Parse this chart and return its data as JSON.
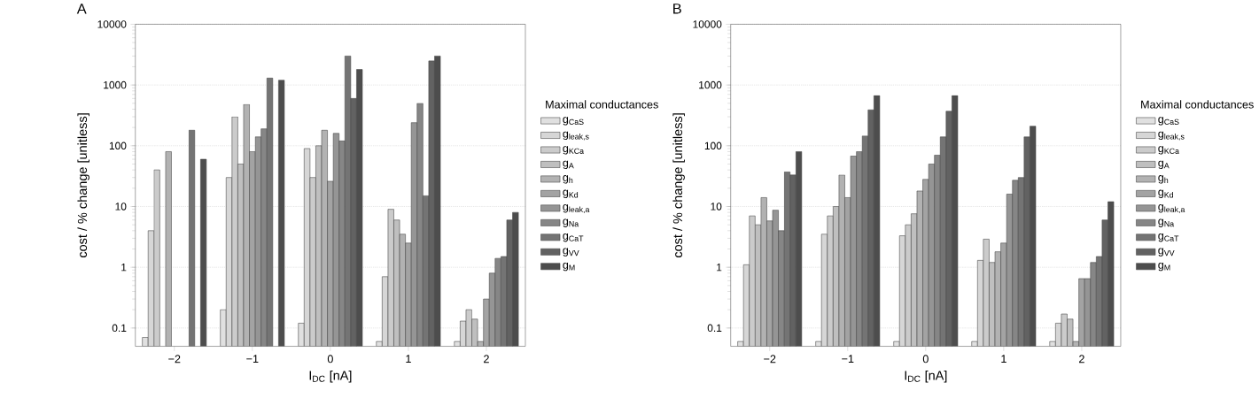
{
  "chart_data": [
    {
      "type": "bar",
      "title": "A",
      "xlabel": "I$_{DC}$ [nA]",
      "ylabel": "cost / % change [unitless]",
      "legend_title": "Maximal conductances",
      "legend": "right",
      "log": "y",
      "grid": "y",
      "categories": [
        "−2",
        "−1",
        "0",
        "1",
        "2"
      ],
      "ylim": [
        0.05,
        10000
      ],
      "yticks": [
        0.1,
        1,
        10,
        100,
        1000,
        10000
      ],
      "series": [
        {
          "name": "g$_{CaS}$",
          "color": "#e0e0e0",
          "values": [
            0.07,
            0.2,
            0.12,
            0.06,
            0.06
          ]
        },
        {
          "name": "g$_{leak,s}$",
          "color": "#d6d6d6",
          "values": [
            4,
            30,
            90,
            0.7,
            0.13
          ]
        },
        {
          "name": "g$_{KCa}$",
          "color": "#cbcbcb",
          "values": [
            40,
            300,
            30,
            9,
            0.2
          ]
        },
        {
          "name": "g$_{A}$",
          "color": "#bfbfbf",
          "values": [
            null,
            50,
            100,
            6,
            0.14
          ]
        },
        {
          "name": "g$_{h}$",
          "color": "#b2b2b2",
          "values": [
            80,
            480,
            180,
            3.5,
            0.06
          ]
        },
        {
          "name": "g$_{Kd}$",
          "color": "#a3a3a3",
          "values": [
            null,
            80,
            26,
            2.5,
            0.3
          ]
        },
        {
          "name": "g$_{leak,a}$",
          "color": "#959595",
          "values": [
            null,
            140,
            160,
            240,
            0.8
          ]
        },
        {
          "name": "g$_{Na}$",
          "color": "#868686",
          "values": [
            null,
            190,
            120,
            500,
            1.4
          ]
        },
        {
          "name": "g$_{CaT}$",
          "color": "#747474",
          "values": [
            180,
            1300,
            3000,
            15,
            1.5
          ]
        },
        {
          "name": "g$_{VV}$",
          "color": "#626262",
          "values": [
            null,
            null,
            600,
            2500,
            6
          ]
        },
        {
          "name": "g$_{M}$",
          "color": "#4d4d4d",
          "values": [
            60,
            1200,
            1800,
            3000,
            8
          ]
        }
      ]
    },
    {
      "type": "bar",
      "title": "B",
      "xlabel": "I$_{DC}$ [nA]",
      "ylabel": "cost / % change [unitless]",
      "legend_title": "Maximal conductances",
      "legend": "right",
      "log": "y",
      "grid": "y",
      "categories": [
        "−2",
        "−1",
        "0",
        "1",
        "2"
      ],
      "ylim": [
        0.05,
        10000
      ],
      "yticks": [
        0.1,
        1,
        10,
        100,
        1000,
        10000
      ],
      "series": [
        {
          "name": "g$_{CaS}$",
          "color": "#e0e0e0",
          "values": [
            0.06,
            0.06,
            0.06,
            0.06,
            0.06
          ]
        },
        {
          "name": "g$_{leak,s}$",
          "color": "#d6d6d6",
          "values": [
            1.1,
            3.5,
            3.3,
            1.3,
            0.12
          ]
        },
        {
          "name": "g$_{KCa}$",
          "color": "#cbcbcb",
          "values": [
            7,
            7,
            5,
            2.9,
            0.17
          ]
        },
        {
          "name": "g$_{A}$",
          "color": "#bfbfbf",
          "values": [
            5,
            10,
            7.6,
            1.2,
            0.14
          ]
        },
        {
          "name": "g$_{h}$",
          "color": "#b2b2b2",
          "values": [
            14,
            33,
            18,
            1.8,
            0.06
          ]
        },
        {
          "name": "g$_{Kd}$",
          "color": "#a3a3a3",
          "values": [
            5.8,
            14,
            28,
            2.5,
            0.65
          ]
        },
        {
          "name": "g$_{leak,a}$",
          "color": "#959595",
          "values": [
            8.7,
            68,
            50,
            16,
            0.65
          ]
        },
        {
          "name": "g$_{Na}$",
          "color": "#868686",
          "values": [
            4,
            80,
            70,
            27,
            1.2
          ]
        },
        {
          "name": "g$_{CaT}$",
          "color": "#747474",
          "values": [
            37,
            145,
            140,
            30,
            1.5
          ]
        },
        {
          "name": "g$_{VV}$",
          "color": "#626262",
          "values": [
            33,
            390,
            370,
            140,
            6
          ]
        },
        {
          "name": "g$_{M}$",
          "color": "#4d4d4d",
          "values": [
            80,
            670,
            670,
            210,
            12
          ]
        }
      ]
    }
  ]
}
